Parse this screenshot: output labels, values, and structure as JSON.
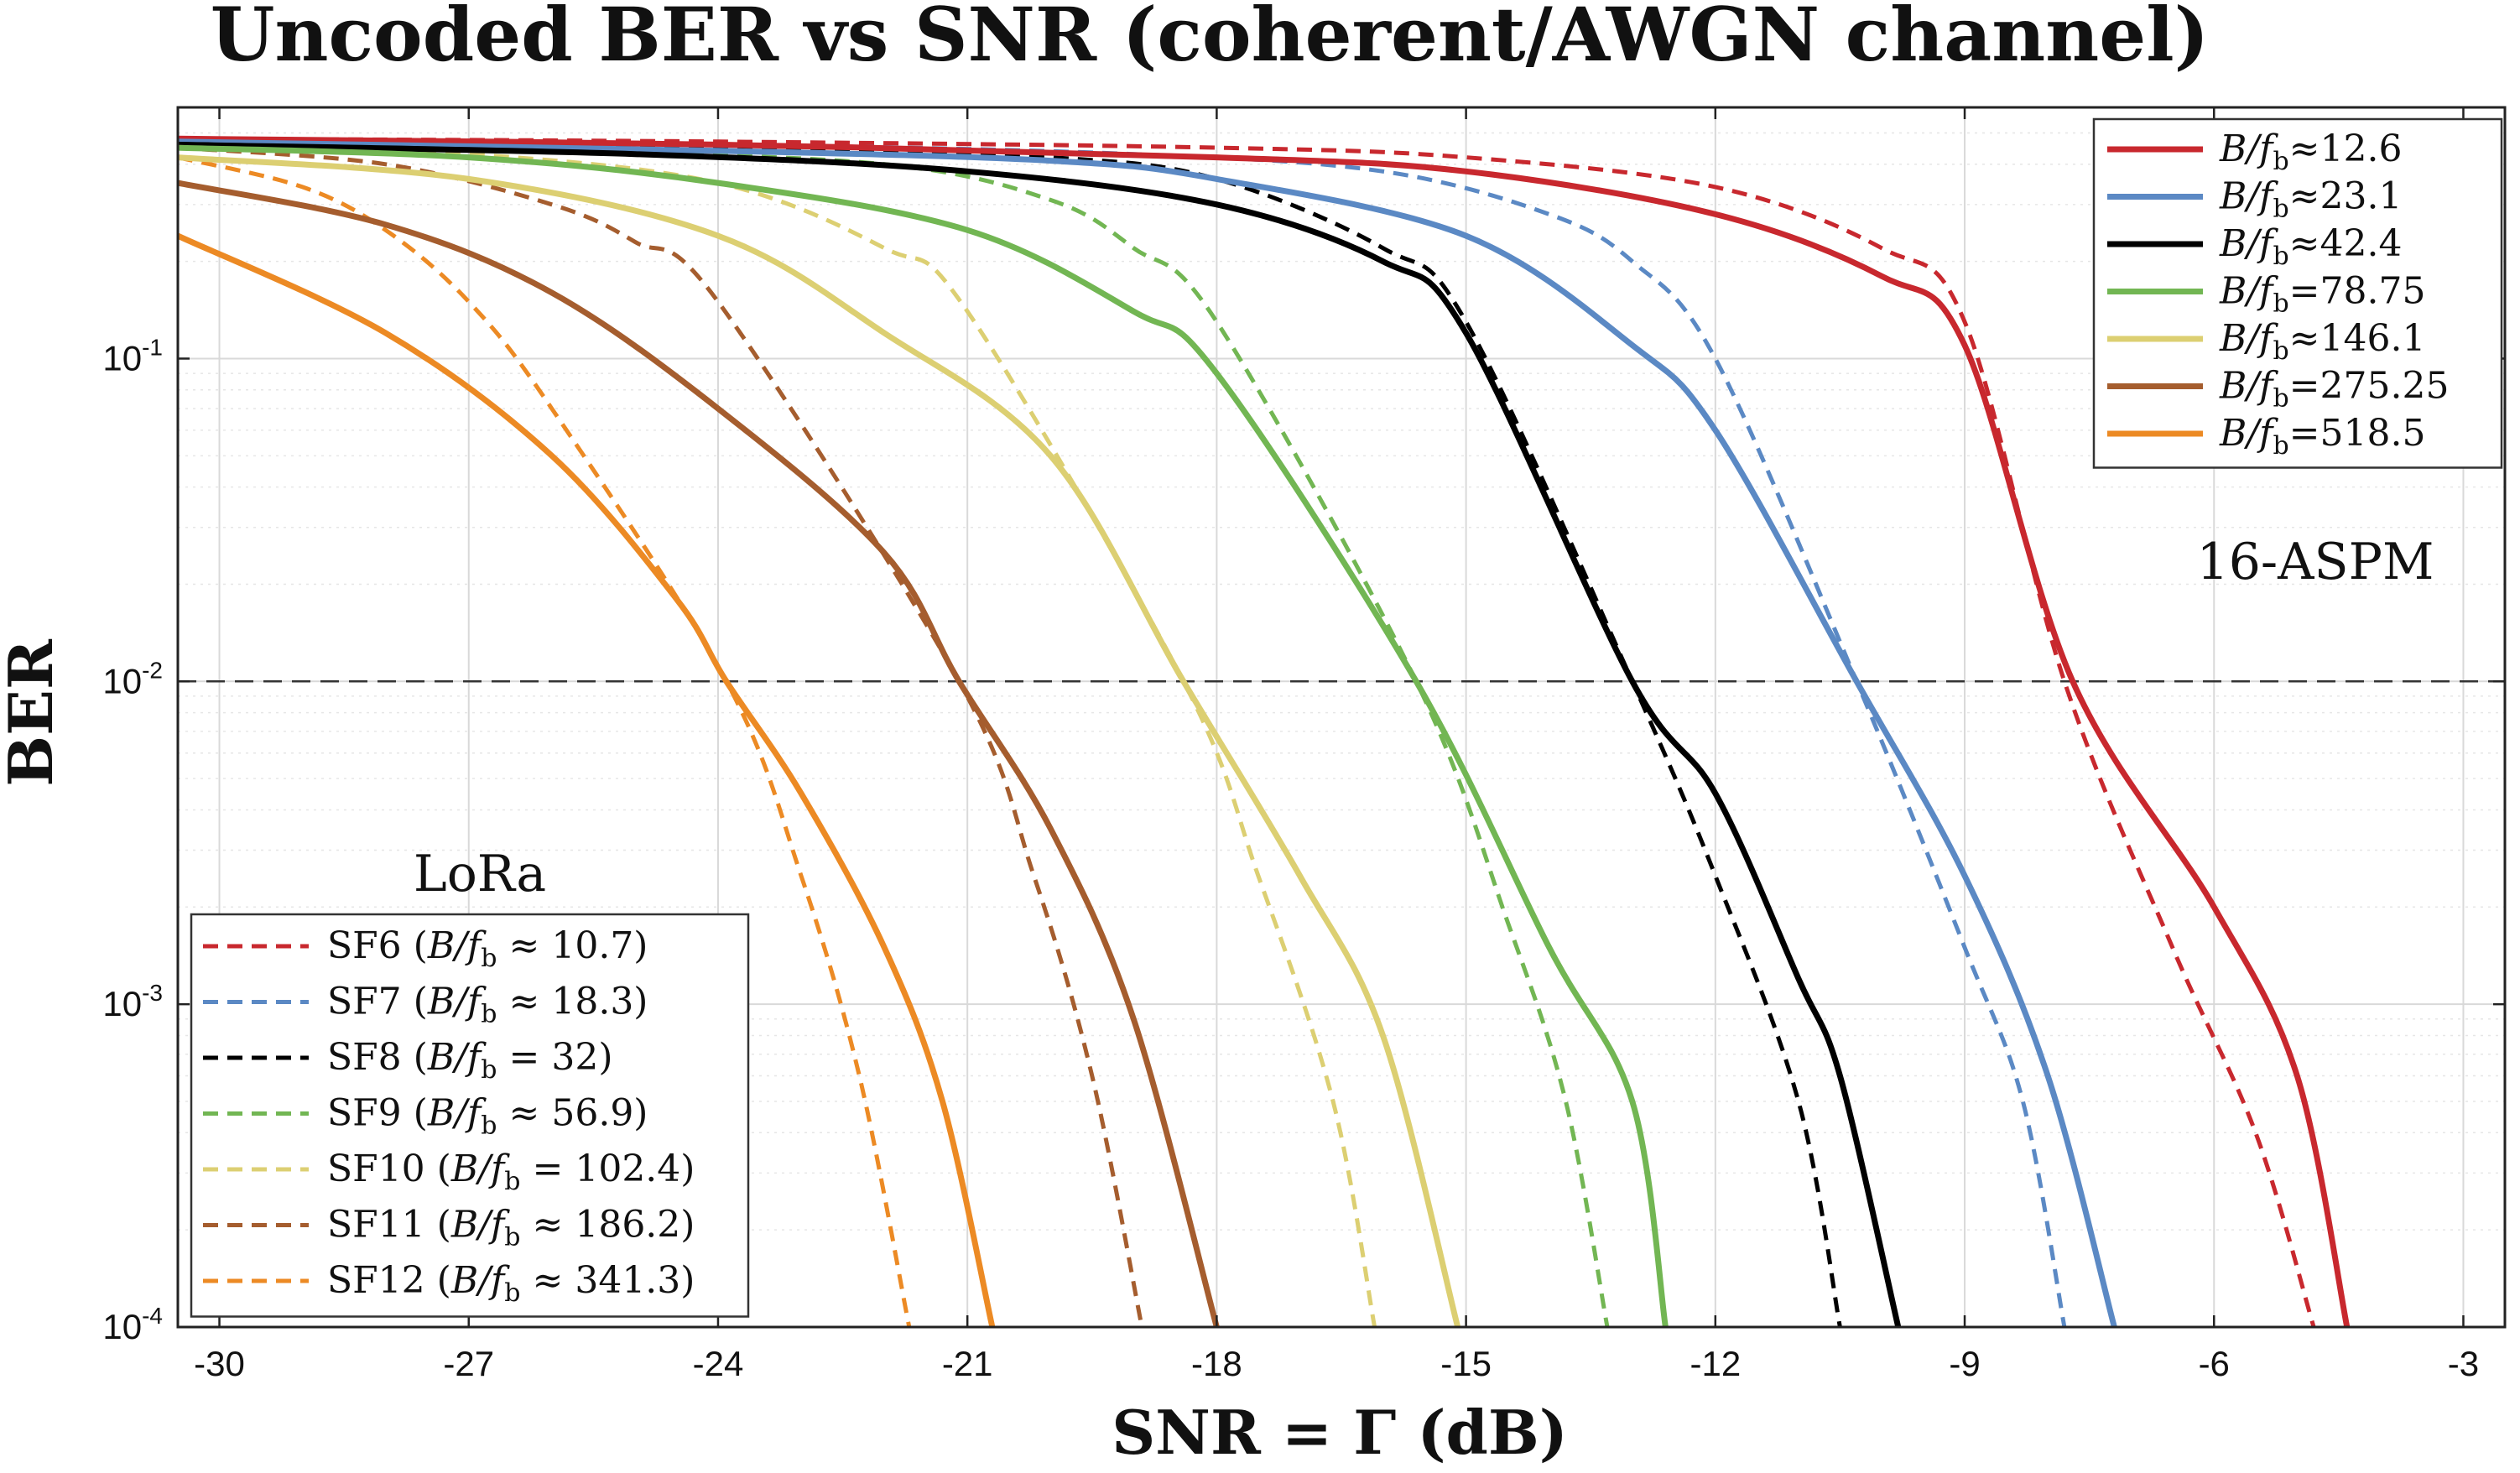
{
  "chart_data": {
    "type": "line",
    "title": "Uncoded BER vs SNR (coherent/AWGN channel)",
    "xlabel": "SNR = Γ (dB)",
    "ylabel": "BER",
    "xlim": [
      -30.5,
      -2.5
    ],
    "ylim": [
      0.0001,
      0.6
    ],
    "yscale": "log",
    "grid": true,
    "xticks": [
      -30,
      -27,
      -24,
      -21,
      -18,
      -15,
      -12,
      -9,
      -6,
      -3
    ],
    "xtick_labels": [
      "-30",
      "-27",
      "-24",
      "-21",
      "-18",
      "-15",
      "-12",
      "-9",
      "-6",
      "-3"
    ],
    "yticks": [
      {
        "value": 0.1,
        "base": "10",
        "exp": "-1"
      },
      {
        "value": 0.01,
        "base": "10",
        "exp": "-2"
      },
      {
        "value": 0.001,
        "base": "10",
        "exp": "-3"
      },
      {
        "value": 0.0001,
        "base": "10",
        "exp": "-4"
      }
    ],
    "reference_line": {
      "y": 0.01,
      "style": "dashed",
      "color": "#333333"
    },
    "series_solid_group": "16-ASPM",
    "series_dashed_group": "LoRa",
    "series": [
      {
        "name": "B/f_b≈12.6",
        "group": "16-ASPM",
        "style": "solid",
        "color": "#c8282e",
        "x": [
          -30.5,
          -24,
          -18,
          -15,
          -12,
          -10,
          -9,
          -7.7,
          -6,
          -5,
          -4.4
        ],
        "y": [
          0.48,
          0.46,
          0.42,
          0.38,
          0.28,
          0.18,
          0.11,
          0.01,
          0.002,
          0.0006,
          0.0001
        ]
      },
      {
        "name": "B/f_b≈23.1",
        "group": "16-ASPM",
        "style": "solid",
        "color": "#5b89c4",
        "x": [
          -30.5,
          -24,
          -20,
          -18,
          -15,
          -13,
          -12,
          -10.3,
          -9,
          -8,
          -7.2
        ],
        "y": [
          0.47,
          0.44,
          0.41,
          0.36,
          0.24,
          0.11,
          0.06,
          0.01,
          0.0025,
          0.0006,
          0.0001
        ]
      },
      {
        "name": "B/f_b≈42.4",
        "group": "16-ASPM",
        "style": "solid",
        "color": "#000000",
        "x": [
          -30.5,
          -25,
          -21,
          -18,
          -16,
          -15,
          -13,
          -12,
          -11,
          -10.5,
          -9.8
        ],
        "y": [
          0.46,
          0.43,
          0.38,
          0.3,
          0.2,
          0.12,
          0.01,
          0.0045,
          0.0012,
          0.0006,
          0.0001
        ]
      },
      {
        "name": "B/f_b=78.75",
        "group": "16-ASPM",
        "style": "solid",
        "color": "#72b653",
        "x": [
          -30.5,
          -27,
          -24,
          -21,
          -19,
          -18,
          -15.6,
          -14,
          -13,
          -12.6
        ],
        "y": [
          0.45,
          0.42,
          0.35,
          0.25,
          0.14,
          0.09,
          0.01,
          0.0015,
          0.0005,
          0.0001
        ]
      },
      {
        "name": "B/f_b≈146.1",
        "group": "16-ASPM",
        "style": "solid",
        "color": "#dccf72",
        "x": [
          -30.5,
          -27,
          -24,
          -22,
          -20,
          -18.4,
          -17,
          -16,
          -15.1
        ],
        "y": [
          0.42,
          0.36,
          0.24,
          0.12,
          0.05,
          0.01,
          0.0025,
          0.0008,
          0.0001
        ]
      },
      {
        "name": "B/f_b=275.25",
        "group": "16-ASPM",
        "style": "solid",
        "color": "#a55d2e",
        "x": [
          -30.5,
          -28,
          -26,
          -24,
          -22,
          -21.1,
          -20,
          -19,
          -18
        ],
        "y": [
          0.35,
          0.26,
          0.16,
          0.07,
          0.025,
          0.01,
          0.0035,
          0.0009,
          0.0001
        ]
      },
      {
        "name": "B/f_b=518.5",
        "group": "16-ASPM",
        "style": "solid",
        "color": "#ec8a24",
        "x": [
          -30.5,
          -28,
          -26,
          -24.5,
          -23.9,
          -23,
          -22,
          -21.3,
          -20.7
        ],
        "y": [
          0.24,
          0.12,
          0.05,
          0.018,
          0.01,
          0.0045,
          0.0015,
          0.0005,
          0.0001
        ]
      },
      {
        "name": "SF6 (B/f_b ≈ 10.7)",
        "group": "LoRa",
        "style": "dashed",
        "color": "#c8282e",
        "x": [
          -30.5,
          -24,
          -18,
          -15,
          -12,
          -10,
          -9,
          -7.8,
          -6.5,
          -5.5,
          -4.8
        ],
        "y": [
          0.48,
          0.47,
          0.45,
          0.42,
          0.34,
          0.22,
          0.13,
          0.01,
          0.0015,
          0.0004,
          0.0001
        ]
      },
      {
        "name": "SF7 (B/f_b ≈ 18.3)",
        "group": "LoRa",
        "style": "dashed",
        "color": "#5b89c4",
        "x": [
          -30.5,
          -24,
          -19,
          -16,
          -14,
          -13,
          -12,
          -10.3,
          -9,
          -8.3,
          -7.8
        ],
        "y": [
          0.47,
          0.46,
          0.43,
          0.38,
          0.28,
          0.2,
          0.1,
          0.01,
          0.0015,
          0.0005,
          0.0001
        ]
      },
      {
        "name": "SF8 (B/f_b = 32)",
        "group": "LoRa",
        "style": "dashed",
        "color": "#000000",
        "x": [
          -30.5,
          -24,
          -20,
          -18,
          -16,
          -15,
          -13,
          -12,
          -11,
          -10.5
        ],
        "y": [
          0.47,
          0.45,
          0.42,
          0.36,
          0.22,
          0.13,
          0.01,
          0.0025,
          0.0005,
          0.0001
        ]
      },
      {
        "name": "SF9 (B/f_b ≈ 56.9)",
        "group": "LoRa",
        "style": "dashed",
        "color": "#72b653",
        "x": [
          -30.5,
          -26,
          -22,
          -20,
          -19,
          -18,
          -15.6,
          -14.5,
          -13.8,
          -13.3
        ],
        "y": [
          0.46,
          0.44,
          0.4,
          0.31,
          0.22,
          0.13,
          0.01,
          0.0018,
          0.0005,
          0.0001
        ]
      },
      {
        "name": "SF10 (B/f_b = 102.4)",
        "group": "LoRa",
        "style": "dashed",
        "color": "#dccf72",
        "x": [
          -30.5,
          -27,
          -24,
          -22,
          -21,
          -18.4,
          -17.5,
          -16.6,
          -16.1
        ],
        "y": [
          0.46,
          0.43,
          0.35,
          0.22,
          0.14,
          0.01,
          0.0025,
          0.0005,
          0.0001
        ]
      },
      {
        "name": "SF11 (B/f_b ≈ 186.2)",
        "group": "LoRa",
        "style": "dashed",
        "color": "#a55d2e",
        "x": [
          -30.5,
          -28,
          -26,
          -25,
          -24,
          -21.1,
          -20.2,
          -19.5,
          -18.9
        ],
        "y": [
          0.45,
          0.4,
          0.3,
          0.23,
          0.15,
          0.01,
          0.0025,
          0.0006,
          0.0001
        ]
      },
      {
        "name": "SF12 (B/f_b ≈ 341.3)",
        "group": "LoRa",
        "style": "dashed",
        "color": "#ec8a24",
        "x": [
          -30.5,
          -29,
          -28,
          -27,
          -26,
          -23.9,
          -23,
          -22.3,
          -21.7
        ],
        "y": [
          0.42,
          0.34,
          0.25,
          0.15,
          0.07,
          0.01,
          0.0025,
          0.0006,
          0.0001
        ]
      }
    ],
    "legend_16aspm": {
      "placement": "top-right",
      "entries": [
        {
          "lhs": "B/f",
          "sub": "b",
          "op": "≈",
          "value": "12.6",
          "color": "#c8282e"
        },
        {
          "lhs": "B/f",
          "sub": "b",
          "op": "≈",
          "value": "23.1",
          "color": "#5b89c4"
        },
        {
          "lhs": "B/f",
          "sub": "b",
          "op": "≈",
          "value": "42.4",
          "color": "#000000"
        },
        {
          "lhs": "B/f",
          "sub": "b",
          "op": "=",
          "value": "78.75",
          "color": "#72b653"
        },
        {
          "lhs": "B/f",
          "sub": "b",
          "op": "≈",
          "value": "146.1",
          "color": "#dccf72"
        },
        {
          "lhs": "B/f",
          "sub": "b",
          "op": "=",
          "value": "275.25",
          "color": "#a55d2e"
        },
        {
          "lhs": "B/f",
          "sub": "b",
          "op": "=",
          "value": "518.5",
          "color": "#ec8a24"
        }
      ]
    },
    "legend_lora": {
      "placement": "bottom-left",
      "entries": [
        {
          "sf": "SF6",
          "lhs": "B/f",
          "sub": "b",
          "op": "≈",
          "value": "10.7",
          "color": "#c8282e"
        },
        {
          "sf": "SF7",
          "lhs": "B/f",
          "sub": "b",
          "op": "≈",
          "value": "18.3",
          "color": "#5b89c4"
        },
        {
          "sf": "SF8",
          "lhs": "B/f",
          "sub": "b",
          "op": "=",
          "value": "32",
          "color": "#000000"
        },
        {
          "sf": "SF9",
          "lhs": "B/f",
          "sub": "b",
          "op": "≈",
          "value": "56.9",
          "color": "#72b653"
        },
        {
          "sf": "SF10",
          "lhs": "B/f",
          "sub": "b",
          "op": "=",
          "value": "102.4",
          "color": "#dccf72"
        },
        {
          "sf": "SF11",
          "lhs": "B/f",
          "sub": "b",
          "op": "≈",
          "value": "186.2",
          "color": "#a55d2e"
        },
        {
          "sf": "SF12",
          "lhs": "B/f",
          "sub": "b",
          "op": "≈",
          "value": "341.3",
          "color": "#ec8a24"
        }
      ]
    },
    "annotations": {
      "aspm_label": "16-ASPM",
      "lora_label": "LoRa"
    }
  }
}
